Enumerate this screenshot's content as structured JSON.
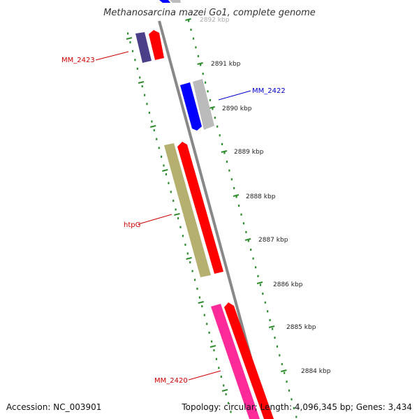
{
  "title": "Methanosarcina mazei Go1, complete genome",
  "accession": "Accession: NC_003901",
  "summary": "Topology: circular; Length: 4,096,345 bp; Genes: 3,434",
  "colors": {
    "backbone": "#888888",
    "ticks": "#2e8b2e",
    "cds_red": "#ff0000",
    "cds_blue": "#0000ff",
    "cds_purple": "#4b3f8a",
    "cds_gray": "#bbbbbb",
    "cds_olive": "#b5b070",
    "cds_pink": "#ff2a9a",
    "label_red": "#cc0000",
    "label_blue": "#0000cc"
  },
  "kbp_labels": [
    "2892 kbp",
    "2891 kbp",
    "2890 kbp",
    "2889 kbp",
    "2888 kbp",
    "2887 kbp",
    "2886 kbp",
    "2885 kbp",
    "2884 kbp"
  ],
  "genes": [
    {
      "name": "MM_2423",
      "color": "label_red"
    },
    {
      "name": "MM_2422",
      "color": "label_blue"
    },
    {
      "name": "htpG",
      "color": "label_red"
    },
    {
      "name": "MM_2420",
      "color": "label_red"
    }
  ]
}
